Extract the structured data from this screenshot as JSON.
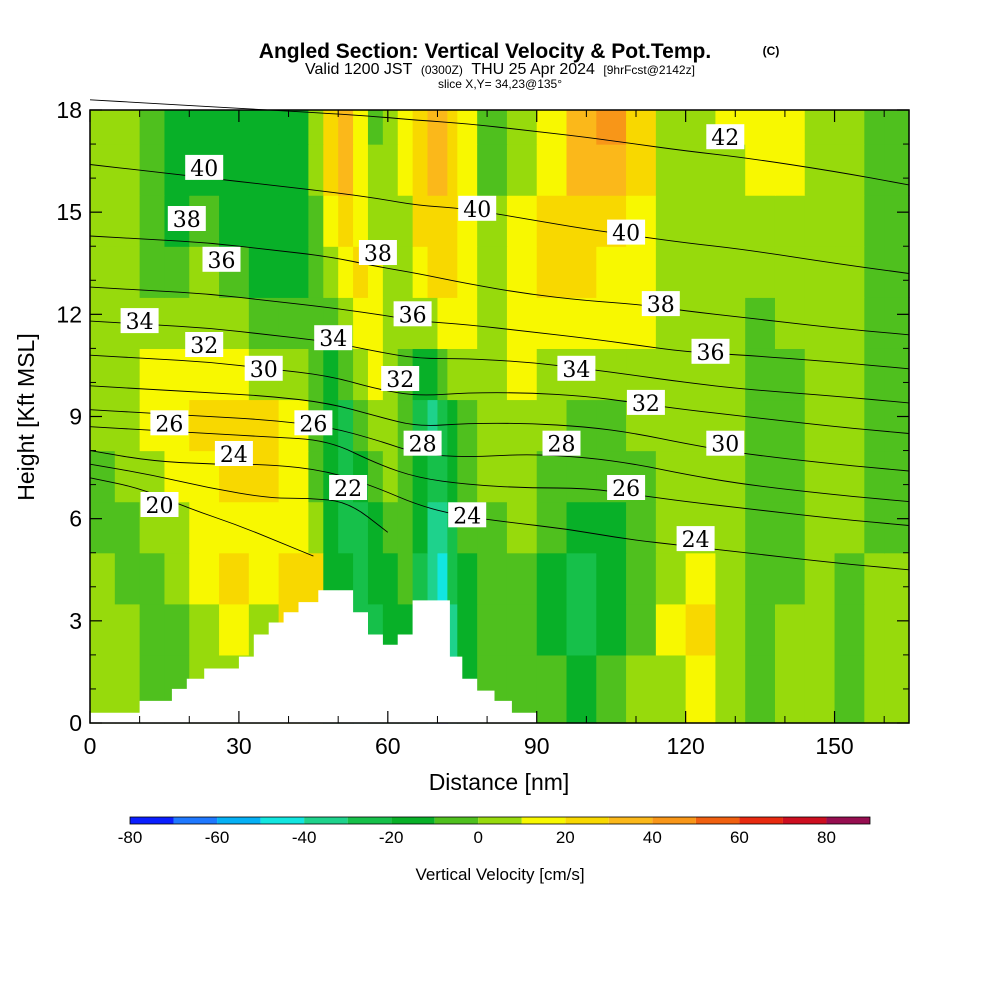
{
  "title": {
    "main": "Angled Section: Vertical Velocity & Pot.Temp.",
    "main_suffix": "(C)",
    "valid_prefix": "Valid 1200 JST",
    "valid_utc": "(0300Z)",
    "valid_date": "THU 25 Apr 2024",
    "forecast": "[9hrFcst@2142z]",
    "slice": "slice X,Y= 34,23@135°"
  },
  "colors": {
    "terrain": "#ffffff",
    "contour": "#000000",
    "frame": "#000000"
  },
  "chart_data": {
    "type": "heatmap",
    "xlabel": "Distance [nm]",
    "ylabel": "Height [Kft MSL]",
    "xlim": [
      0,
      165
    ],
    "ylim": [
      0,
      18
    ],
    "xticks": [
      0,
      30,
      60,
      90,
      120,
      150
    ],
    "yticks": [
      0,
      3,
      6,
      9,
      12,
      15,
      18
    ],
    "x_tick_labels": [
      "0",
      "30",
      "60",
      "90",
      "120",
      "150"
    ],
    "y_tick_labels": [
      "0",
      "3",
      "6",
      "9",
      "12",
      "15",
      "18"
    ],
    "colorbar": {
      "label": "Vertical Velocity [cm/s]",
      "levels": [
        -80,
        -70,
        -60,
        -50,
        -40,
        -30,
        -20,
        -10,
        0,
        10,
        20,
        30,
        40,
        50,
        60,
        70,
        80,
        90
      ],
      "colors": [
        "#0a1eff",
        "#1f78ff",
        "#05b0f5",
        "#12e6e0",
        "#1ed28c",
        "#16c04a",
        "#08b028",
        "#4fc01e",
        "#97da0c",
        "#f8f800",
        "#f8d800",
        "#fbb81a",
        "#f89618",
        "#f06010",
        "#e82a10",
        "#cd0e20",
        "#960e50",
        "#5a0a78"
      ],
      "tick_values": [
        -80,
        -60,
        -40,
        -20,
        0,
        20,
        40,
        60,
        80
      ],
      "tick_labels": [
        "-80",
        "-60",
        "-40",
        "-20",
        "0",
        "20",
        "40",
        "60",
        "80"
      ]
    },
    "velocity_cells": {
      "x_edges": [
        0,
        5,
        10,
        15,
        20,
        26,
        32,
        38,
        44,
        47,
        50,
        53,
        56,
        59,
        62,
        65,
        68,
        70,
        72,
        74,
        78,
        84,
        90,
        96,
        102,
        108,
        114,
        120,
        126,
        132,
        138,
        144,
        150,
        156,
        160,
        165
      ],
      "y_edges": [
        0,
        2,
        3.5,
        5,
        6.5,
        8,
        9.5,
        11,
        12.5,
        14,
        15.5,
        17,
        18
      ],
      "values": [
        [
          5,
          5,
          -5,
          -5,
          5,
          5,
          5,
          15,
          5,
          -25,
          -30,
          -35,
          -25,
          -20,
          -15,
          -30,
          -45,
          -75,
          -40,
          -20,
          -10,
          -5,
          -10,
          -15,
          -5,
          5,
          5,
          15,
          5,
          -5,
          5,
          5,
          -5,
          5,
          5
        ],
        [
          5,
          5,
          -5,
          -5,
          5,
          15,
          5,
          25,
          25,
          -15,
          -25,
          -30,
          -30,
          -15,
          -15,
          -30,
          -45,
          -60,
          -35,
          -20,
          -10,
          -5,
          -15,
          -25,
          -20,
          -5,
          15,
          25,
          5,
          -5,
          5,
          5,
          -5,
          5,
          5
        ],
        [
          5,
          -5,
          -5,
          5,
          15,
          25,
          15,
          25,
          25,
          -15,
          -20,
          -25,
          -20,
          -15,
          -5,
          -25,
          -40,
          -45,
          -30,
          -15,
          -5,
          -5,
          -15,
          -25,
          -20,
          -5,
          5,
          15,
          5,
          -5,
          -5,
          5,
          -5,
          5,
          5
        ],
        [
          -5,
          -5,
          5,
          5,
          15,
          15,
          15,
          15,
          5,
          -15,
          -25,
          -25,
          -15,
          -5,
          -5,
          -20,
          -35,
          -35,
          -25,
          -10,
          -5,
          5,
          -10,
          -15,
          -15,
          -5,
          5,
          5,
          5,
          -5,
          -5,
          5,
          5,
          -5,
          -5
        ],
        [
          -5,
          5,
          5,
          15,
          15,
          25,
          25,
          15,
          -5,
          -20,
          -25,
          -15,
          -5,
          5,
          -5,
          -15,
          -30,
          -25,
          -15,
          -5,
          5,
          5,
          -5,
          -10,
          -5,
          -5,
          5,
          5,
          5,
          -5,
          -5,
          5,
          5,
          -5,
          -5
        ],
        [
          5,
          5,
          15,
          15,
          25,
          25,
          25,
          15,
          -5,
          -20,
          -25,
          -5,
          5,
          5,
          -5,
          -25,
          -35,
          -25,
          -15,
          -5,
          5,
          5,
          5,
          -5,
          -5,
          5,
          5,
          5,
          5,
          -5,
          -5,
          5,
          5,
          -5,
          -5
        ],
        [
          5,
          5,
          15,
          15,
          15,
          15,
          5,
          5,
          -5,
          -15,
          -10,
          5,
          15,
          5,
          -5,
          -20,
          -15,
          -5,
          5,
          5,
          5,
          15,
          5,
          5,
          5,
          5,
          5,
          5,
          5,
          -5,
          -5,
          5,
          5,
          -5,
          -5
        ],
        [
          5,
          5,
          5,
          5,
          5,
          5,
          -5,
          -5,
          -5,
          -5,
          5,
          15,
          15,
          5,
          5,
          5,
          5,
          15,
          15,
          15,
          5,
          15,
          15,
          15,
          15,
          15,
          5,
          5,
          5,
          -5,
          5,
          5,
          5,
          -5,
          -5
        ],
        [
          5,
          5,
          -5,
          -5,
          5,
          -5,
          -15,
          -15,
          -5,
          5,
          15,
          25,
          15,
          5,
          5,
          15,
          25,
          25,
          25,
          15,
          5,
          15,
          25,
          25,
          15,
          15,
          5,
          5,
          5,
          5,
          5,
          5,
          5,
          -5,
          -5
        ],
        [
          5,
          5,
          -5,
          -15,
          -5,
          -15,
          -15,
          -15,
          -5,
          15,
          25,
          15,
          5,
          5,
          5,
          25,
          25,
          25,
          25,
          15,
          5,
          15,
          25,
          25,
          25,
          15,
          5,
          5,
          5,
          5,
          5,
          5,
          5,
          -5,
          -5
        ],
        [
          5,
          5,
          -5,
          -15,
          -15,
          -15,
          -15,
          -15,
          5,
          25,
          35,
          15,
          5,
          5,
          15,
          25,
          35,
          35,
          25,
          15,
          -5,
          5,
          15,
          35,
          35,
          25,
          5,
          5,
          5,
          15,
          15,
          5,
          5,
          -5,
          -5
        ],
        [
          5,
          5,
          -5,
          -15,
          -15,
          -15,
          -15,
          -15,
          5,
          25,
          35,
          15,
          -5,
          5,
          15,
          25,
          35,
          35,
          25,
          15,
          -5,
          5,
          15,
          35,
          45,
          25,
          5,
          5,
          15,
          15,
          15,
          5,
          5,
          -5,
          -5
        ]
      ]
    },
    "terrain_profile": {
      "x": [
        0,
        10,
        10,
        16.5,
        16.5,
        19.5,
        19.5,
        23,
        23,
        30,
        30,
        33,
        33,
        36,
        36,
        39,
        39,
        42,
        42,
        46,
        46,
        53,
        53,
        56,
        56,
        59,
        59,
        62,
        62,
        65,
        65,
        72.5,
        72.5,
        75,
        75,
        78,
        78,
        81.5,
        81.5,
        85,
        85,
        90,
        90,
        165
      ],
      "y": [
        0.3,
        0.3,
        0.65,
        0.65,
        1.0,
        1.0,
        1.3,
        1.3,
        1.6,
        1.6,
        1.95,
        1.95,
        2.6,
        2.6,
        2.95,
        2.95,
        3.25,
        3.25,
        3.55,
        3.55,
        3.9,
        3.9,
        3.25,
        3.25,
        2.6,
        2.6,
        2.3,
        2.3,
        2.6,
        2.6,
        3.6,
        3.6,
        1.95,
        1.95,
        1.3,
        1.3,
        0.95,
        0.95,
        0.65,
        0.65,
        0.3,
        0.3,
        0,
        0
      ]
    },
    "isotherms": [
      {
        "value": 20,
        "x": [
          0,
          10,
          20,
          30,
          40,
          45
        ],
        "y": [
          7.2,
          6.9,
          6.3,
          5.8,
          5.2,
          4.9
        ]
      },
      {
        "value": 22,
        "x": [
          0,
          12,
          24,
          36,
          44,
          52,
          60
        ],
        "y": [
          7.6,
          7.3,
          6.9,
          6.6,
          6.6,
          6.5,
          5.6
        ]
      },
      {
        "value": 24,
        "x": [
          0,
          12,
          24,
          36,
          48,
          58,
          66,
          74,
          84,
          96,
          108,
          120,
          132,
          150,
          165
        ],
        "y": [
          8.0,
          7.7,
          7.6,
          7.6,
          7.4,
          6.9,
          6.4,
          6.1,
          5.9,
          5.7,
          5.4,
          5.2,
          5.0,
          4.7,
          4.5
        ]
      },
      {
        "value": 26,
        "x": [
          0,
          12,
          24,
          36,
          48,
          58,
          66,
          76,
          88,
          100,
          110,
          120,
          132,
          150,
          165
        ],
        "y": [
          8.7,
          8.6,
          8.5,
          8.4,
          8.3,
          7.6,
          7.2,
          7.0,
          6.9,
          6.9,
          6.7,
          6.5,
          6.3,
          6.0,
          5.8
        ]
      },
      {
        "value": 28,
        "x": [
          0,
          12,
          24,
          36,
          48,
          58,
          66,
          76,
          88,
          100,
          110,
          120,
          132,
          150,
          165
        ],
        "y": [
          9.2,
          9.1,
          9.0,
          8.9,
          8.7,
          8.3,
          7.9,
          7.8,
          7.9,
          7.8,
          7.6,
          7.3,
          7.0,
          6.7,
          6.5
        ]
      },
      {
        "value": 30,
        "x": [
          0,
          12,
          24,
          36,
          48,
          58,
          66,
          76,
          88,
          100,
          110,
          120,
          132,
          150,
          165
        ],
        "y": [
          9.9,
          9.8,
          9.7,
          9.6,
          9.4,
          9.0,
          8.7,
          8.8,
          8.8,
          8.7,
          8.5,
          8.2,
          7.9,
          7.6,
          7.4
        ]
      },
      {
        "value": 32,
        "x": [
          0,
          12,
          24,
          36,
          48,
          58,
          66,
          76,
          88,
          100,
          110,
          120,
          132,
          150,
          165
        ],
        "y": [
          10.8,
          10.7,
          10.6,
          10.4,
          10.2,
          9.8,
          9.6,
          9.7,
          9.7,
          9.6,
          9.4,
          9.2,
          9.0,
          8.7,
          8.5
        ]
      },
      {
        "value": 34,
        "x": [
          0,
          12,
          24,
          36,
          48,
          58,
          66,
          76,
          88,
          100,
          110,
          120,
          132,
          150,
          165
        ],
        "y": [
          11.8,
          11.7,
          11.6,
          11.4,
          11.2,
          10.9,
          10.7,
          10.7,
          10.6,
          10.4,
          10.2,
          10.0,
          9.8,
          9.6,
          9.4
        ]
      },
      {
        "value": 36,
        "x": [
          0,
          12,
          24,
          36,
          48,
          58,
          66,
          76,
          88,
          100,
          110,
          120,
          132,
          150,
          165
        ],
        "y": [
          12.8,
          12.7,
          12.6,
          12.4,
          12.2,
          12.0,
          11.8,
          11.7,
          11.5,
          11.3,
          11.1,
          10.9,
          10.8,
          10.6,
          10.4
        ]
      },
      {
        "value": 38,
        "x": [
          0,
          12,
          24,
          36,
          48,
          58,
          66,
          76,
          88,
          100,
          110,
          120,
          132,
          150,
          165
        ],
        "y": [
          14.3,
          14.2,
          14.1,
          13.9,
          13.7,
          13.4,
          13.2,
          12.9,
          12.6,
          12.4,
          12.3,
          12.1,
          11.9,
          11.6,
          11.4
        ]
      },
      {
        "value": 40,
        "x": [
          0,
          12,
          24,
          36,
          48,
          58,
          66,
          76,
          88,
          100,
          110,
          120,
          132,
          150,
          165
        ],
        "y": [
          16.4,
          16.2,
          16.0,
          15.8,
          15.6,
          15.4,
          15.2,
          15.1,
          14.8,
          14.5,
          14.3,
          14.1,
          13.9,
          13.5,
          13.2
        ]
      },
      {
        "value": 42,
        "x": [
          0,
          12,
          24,
          36,
          48,
          58,
          66,
          76,
          88,
          100,
          110,
          120,
          132,
          150,
          165
        ],
        "y": [
          18.3,
          18.2,
          18.1,
          18.0,
          17.9,
          17.8,
          17.7,
          17.6,
          17.4,
          17.2,
          17.0,
          16.8,
          16.6,
          16.2,
          15.8
        ]
      }
    ],
    "isotherm_labels": [
      {
        "text": "40",
        "x": 23,
        "y": 16.3
      },
      {
        "text": "38",
        "x": 19.5,
        "y": 14.8
      },
      {
        "text": "36",
        "x": 26.5,
        "y": 13.6
      },
      {
        "text": "34",
        "x": 10,
        "y": 11.8
      },
      {
        "text": "32",
        "x": 23,
        "y": 11.1
      },
      {
        "text": "30",
        "x": 35,
        "y": 10.4
      },
      {
        "text": "26",
        "x": 16,
        "y": 8.8
      },
      {
        "text": "24",
        "x": 29,
        "y": 7.9
      },
      {
        "text": "20",
        "x": 14,
        "y": 6.4
      },
      {
        "text": "26",
        "x": 45,
        "y": 8.8
      },
      {
        "text": "34",
        "x": 49,
        "y": 11.3
      },
      {
        "text": "22",
        "x": 52,
        "y": 6.9
      },
      {
        "text": "38",
        "x": 58,
        "y": 13.8
      },
      {
        "text": "36",
        "x": 65,
        "y": 12.0
      },
      {
        "text": "32",
        "x": 62.5,
        "y": 10.1
      },
      {
        "text": "28",
        "x": 67,
        "y": 8.2
      },
      {
        "text": "24",
        "x": 76,
        "y": 6.1
      },
      {
        "text": "40",
        "x": 78,
        "y": 15.1
      },
      {
        "text": "40",
        "x": 108,
        "y": 14.4
      },
      {
        "text": "34",
        "x": 98,
        "y": 10.4
      },
      {
        "text": "28",
        "x": 95,
        "y": 8.2
      },
      {
        "text": "26",
        "x": 108,
        "y": 6.9
      },
      {
        "text": "32",
        "x": 112,
        "y": 9.4
      },
      {
        "text": "38",
        "x": 115,
        "y": 12.3
      },
      {
        "text": "36",
        "x": 125,
        "y": 10.9
      },
      {
        "text": "30",
        "x": 128,
        "y": 8.2
      },
      {
        "text": "42",
        "x": 128,
        "y": 17.2
      },
      {
        "text": "24",
        "x": 122,
        "y": 5.4
      }
    ]
  }
}
